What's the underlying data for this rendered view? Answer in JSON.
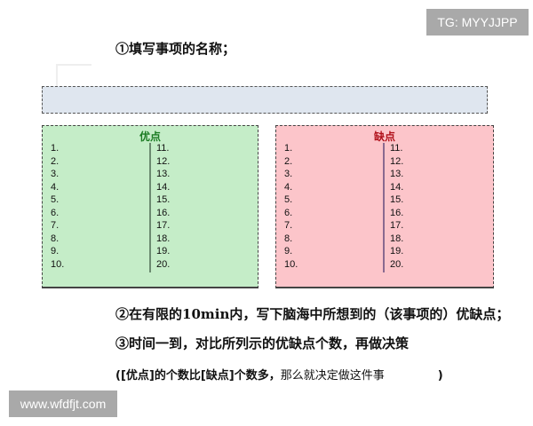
{
  "watermarks": {
    "top": "TG: MYYJJPP",
    "bottom": "www.wfdfjt.com"
  },
  "steps": {
    "step1": "①填写事项的名称；",
    "step2": "②在有限的10min内，写下脑海中所想到的（该事项的）优缺点；",
    "step3": "③时间一到，对比所列示的优缺点个数，再做决策",
    "note_open": "([优点]的个数比[缺点]个数多，",
    "note_rest": "那么就决定做这件事",
    "note_close": ")"
  },
  "name_field": {
    "value": ""
  },
  "panels": {
    "pros": {
      "title": "优点",
      "color": "#1a7a22",
      "background": "#c5edc8",
      "left": [
        "1.",
        "2.",
        "3.",
        "4.",
        "5.",
        "6.",
        "7.",
        "8.",
        "9.",
        "10."
      ],
      "right": [
        "11.",
        "12.",
        "13.",
        "14.",
        "15.",
        "16.",
        "17.",
        "18.",
        "19.",
        "20."
      ]
    },
    "cons": {
      "title": "缺点",
      "color": "#b0101a",
      "background": "#fcc5ca",
      "left": [
        "1.",
        "2.",
        "3.",
        "4.",
        "5.",
        "6.",
        "7.",
        "8.",
        "9.",
        "10."
      ],
      "right": [
        "11.",
        "12.",
        "13.",
        "14.",
        "15.",
        "16.",
        "17.",
        "18.",
        "19.",
        "20."
      ]
    }
  }
}
